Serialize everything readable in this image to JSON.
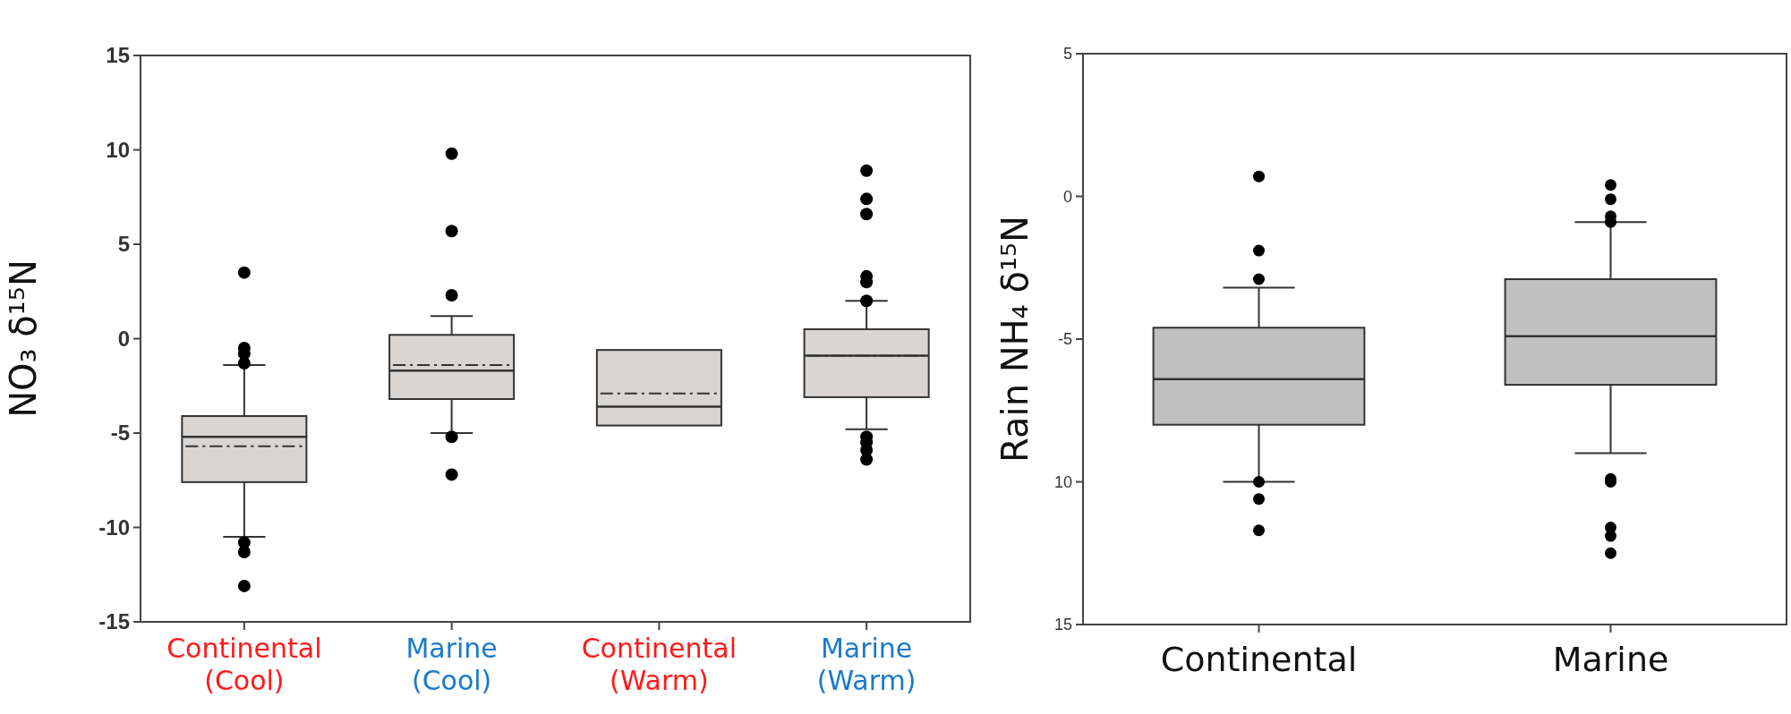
{
  "chart_data": [
    {
      "type": "box",
      "ylabel": "NO₃ δ¹⁵N",
      "categories": [
        "Continental\n(Cool)",
        "Marine\n(Cool)",
        "Continental\n(Warm)",
        "Marine\n(Warm)"
      ],
      "ylim": [
        -15,
        15
      ],
      "yticks": [
        -15,
        -10,
        -5,
        0,
        5,
        10,
        15
      ],
      "series": [
        {
          "color": "#d8d5d3",
          "boxes": [
            {
              "low": -10.5,
              "q1": -7.6,
              "median": -5.2,
              "q3": -4.1,
              "high": -1.4,
              "mean": -5.7,
              "outliers": [
                3.5,
                -0.5,
                -0.8,
                -1.3,
                -10.8,
                -11.3,
                -13.1
              ]
            },
            {
              "low": -5,
              "q1": -3.2,
              "median": -1.7,
              "q3": 0.2,
              "high": 1.2,
              "mean": -1.4,
              "outliers": [
                9.8,
                5.7,
                2.3,
                -5.2,
                -7.2
              ]
            },
            {
              "low": -4.6,
              "q1": -4.6,
              "median": -3.6,
              "q3": -0.6,
              "high": -0.6,
              "mean": -2.9
            },
            {
              "low": -4.8,
              "q1": -3.1,
              "median": -0.9,
              "q3": 0.5,
              "high": 2,
              "mean": -0.9,
              "outliers": [
                8.9,
                7.4,
                6.6,
                3.3,
                3,
                2,
                -5.2,
                -5.5,
                -5.9,
                -6.4
              ]
            }
          ]
        }
      ]
    },
    {
      "type": "box",
      "ylabel": "Rain NH₄ δ¹⁵N",
      "categories": [
        "Continental",
        "Marine"
      ],
      "ylim": [
        -15,
        5
      ],
      "yticks": [
        {
          "value": -15,
          "label": "15"
        },
        {
          "value": -10,
          "label": "10"
        },
        -5,
        0,
        5
      ],
      "series": [
        {
          "color": "#c0c0c0",
          "boxes": [
            {
              "low": -10,
              "q1": -8,
              "median": -6.4,
              "q3": -4.6,
              "high": -3.2,
              "outliers": [
                0.7,
                -1.9,
                -2.9,
                -10,
                -10.6,
                -11.7
              ]
            },
            {
              "low": -9,
              "q1": -6.6,
              "median": -4.9,
              "q3": -2.9,
              "high": -0.9,
              "outliers": [
                0.4,
                -0.1,
                -0.7,
                -0.9,
                -9.9,
                -10,
                -11.6,
                -11.9,
                -12.5
              ]
            }
          ]
        }
      ]
    }
  ]
}
